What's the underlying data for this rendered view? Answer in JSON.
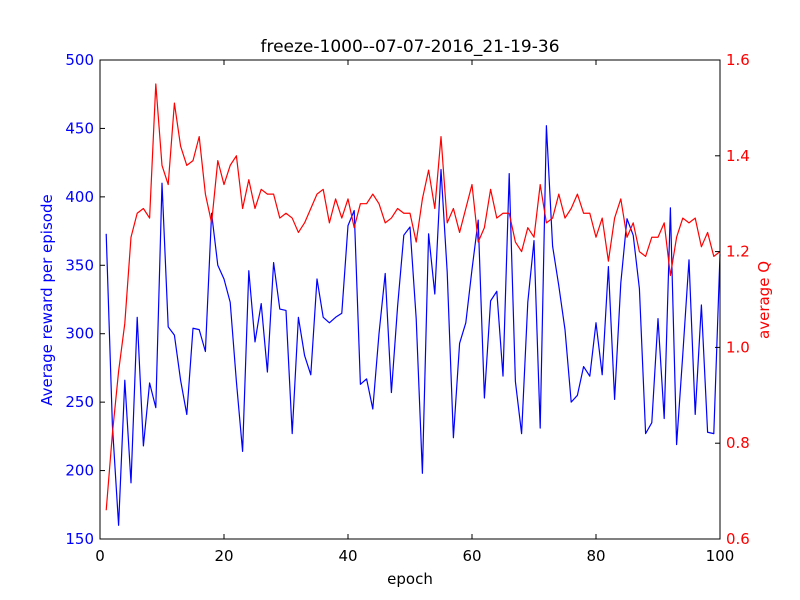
{
  "chart_data": {
    "type": "line",
    "title": "freeze-1000--07-07-2016_21-19-36",
    "xlabel": "epoch",
    "ylabel_left": "Average reward per episode",
    "ylabel_right": "average Q",
    "xlim": [
      0,
      100
    ],
    "ylim_left": [
      150,
      500
    ],
    "ylim_right": [
      0.6,
      1.6
    ],
    "x_ticks": [
      0,
      20,
      40,
      60,
      80,
      100
    ],
    "x_tick_labels": [
      "0",
      "20",
      "40",
      "60",
      "80",
      "100"
    ],
    "y_left_ticks": [
      150,
      200,
      250,
      300,
      350,
      400,
      450,
      500
    ],
    "y_left_tick_labels": [
      "150",
      "200",
      "250",
      "300",
      "350",
      "400",
      "450",
      "500"
    ],
    "y_right_ticks": [
      0.6,
      0.8,
      1.0,
      1.2,
      1.4,
      1.6
    ],
    "y_right_tick_labels": [
      "0.6",
      "0.8",
      "1.0",
      "1.2",
      "1.4",
      "1.6"
    ],
    "grid": false,
    "left_color": "#0000ff",
    "right_color": "#ff0000",
    "series": [
      {
        "axis": "left",
        "color": "#0000ff",
        "x": [
          1,
          2,
          3,
          4,
          5,
          6,
          7,
          8,
          9,
          10,
          11,
          12,
          13,
          14,
          15,
          16,
          17,
          18,
          19,
          20,
          21,
          22,
          23,
          24,
          25,
          26,
          27,
          28,
          29,
          30,
          31,
          32,
          33,
          34,
          35,
          36,
          37,
          38,
          39,
          40,
          41,
          42,
          43,
          44,
          45,
          46,
          47,
          48,
          49,
          50,
          51,
          52,
          53,
          54,
          55,
          56,
          57,
          58,
          59,
          60,
          61,
          62,
          63,
          64,
          65,
          66,
          67,
          68,
          69,
          70,
          71,
          72,
          73,
          74,
          75,
          76,
          77,
          78,
          79,
          80,
          81,
          82,
          83,
          84,
          85,
          86,
          87,
          88,
          89,
          90,
          91,
          92,
          93,
          94,
          95,
          96,
          97,
          98,
          99,
          100
        ],
        "values": [
          373,
          233,
          160,
          266,
          191,
          312,
          218,
          264,
          246,
          410,
          305,
          299,
          266,
          241,
          304,
          303,
          287,
          388,
          350,
          340,
          323,
          265,
          214,
          346,
          294,
          322,
          272,
          352,
          318,
          317,
          227,
          312,
          284,
          270,
          340,
          312,
          308,
          312,
          315,
          379,
          390,
          263,
          267,
          245,
          300,
          344,
          257,
          320,
          372,
          378,
          311,
          198,
          373,
          329,
          420,
          345,
          224,
          293,
          308,
          347,
          383,
          253,
          324,
          331,
          269,
          417,
          265,
          227,
          323,
          368,
          231,
          452,
          364,
          335,
          303,
          250,
          255,
          276,
          269,
          308,
          270,
          349,
          252,
          337,
          384,
          372,
          333,
          227,
          235,
          311,
          238,
          392,
          219,
          285,
          354,
          241,
          321,
          228,
          227,
          358
        ]
      },
      {
        "axis": "right",
        "color": "#ff0000",
        "x": [
          1,
          2,
          3,
          4,
          5,
          6,
          7,
          8,
          9,
          10,
          11,
          12,
          13,
          14,
          15,
          16,
          17,
          18,
          19,
          20,
          21,
          22,
          23,
          24,
          25,
          26,
          27,
          28,
          29,
          30,
          31,
          32,
          33,
          34,
          35,
          36,
          37,
          38,
          39,
          40,
          41,
          42,
          43,
          44,
          45,
          46,
          47,
          48,
          49,
          50,
          51,
          52,
          53,
          54,
          55,
          56,
          57,
          58,
          59,
          60,
          61,
          62,
          63,
          64,
          65,
          66,
          67,
          68,
          69,
          70,
          71,
          72,
          73,
          74,
          75,
          76,
          77,
          78,
          79,
          80,
          81,
          82,
          83,
          84,
          85,
          86,
          87,
          88,
          89,
          90,
          91,
          92,
          93,
          94,
          95,
          96,
          97,
          98,
          99,
          100
        ],
        "values": [
          0.66,
          0.82,
          0.95,
          1.05,
          1.23,
          1.28,
          1.29,
          1.27,
          1.55,
          1.38,
          1.34,
          1.51,
          1.42,
          1.38,
          1.39,
          1.44,
          1.32,
          1.26,
          1.39,
          1.34,
          1.38,
          1.4,
          1.29,
          1.35,
          1.29,
          1.33,
          1.32,
          1.32,
          1.27,
          1.28,
          1.27,
          1.24,
          1.26,
          1.29,
          1.32,
          1.33,
          1.26,
          1.31,
          1.27,
          1.31,
          1.25,
          1.3,
          1.3,
          1.32,
          1.3,
          1.26,
          1.27,
          1.29,
          1.28,
          1.28,
          1.22,
          1.31,
          1.37,
          1.29,
          1.44,
          1.26,
          1.29,
          1.24,
          1.29,
          1.34,
          1.22,
          1.25,
          1.33,
          1.27,
          1.28,
          1.28,
          1.22,
          1.2,
          1.25,
          1.23,
          1.34,
          1.26,
          1.27,
          1.32,
          1.27,
          1.29,
          1.32,
          1.28,
          1.28,
          1.23,
          1.27,
          1.18,
          1.27,
          1.31,
          1.23,
          1.26,
          1.2,
          1.19,
          1.23,
          1.23,
          1.26,
          1.15,
          1.23,
          1.27,
          1.26,
          1.27,
          1.21,
          1.24,
          1.19,
          1.2
        ]
      }
    ]
  }
}
